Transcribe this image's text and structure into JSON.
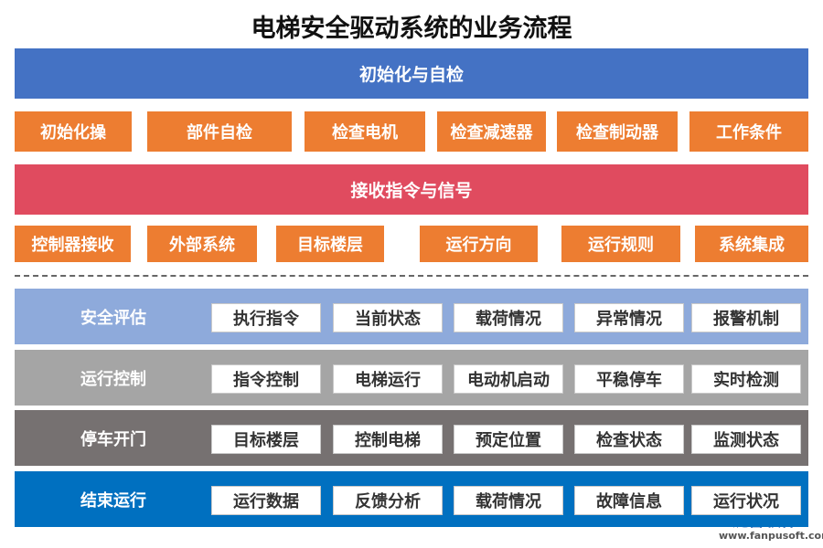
{
  "title": "电梯安全驱动系统的业务流程",
  "top_sections": [
    {
      "title": "初始化与自检",
      "items": [
        "初始化操",
        "部件自检",
        "检查电机",
        "检查减速器",
        "检查制动器",
        "工作条件"
      ]
    },
    {
      "title": "接收指令与信号",
      "items": [
        "控制器接收",
        "外部系统",
        "目标楼层",
        "运行方向",
        "运行规则",
        "系统集成"
      ]
    }
  ],
  "stages": [
    {
      "label": "安全评估",
      "items": [
        "执行指令",
        "当前状态",
        "载荷情况",
        "异常情况",
        "报警机制"
      ]
    },
    {
      "label": "运行控制",
      "items": [
        "指令控制",
        "电梯运行",
        "电动机启动",
        "平稳停车",
        "实时检测"
      ]
    },
    {
      "label": "停车开门",
      "items": [
        "目标楼层",
        "控制电梯",
        "预定位置",
        "检查状态",
        "监测状态"
      ]
    },
    {
      "label": "结束运行",
      "items": [
        "运行数据",
        "反馈分析",
        "载荷情况",
        "故障信息",
        "运行状况"
      ]
    }
  ],
  "watermark": {
    "name": "泛普软件",
    "url": "www.fanpusoft.com"
  }
}
